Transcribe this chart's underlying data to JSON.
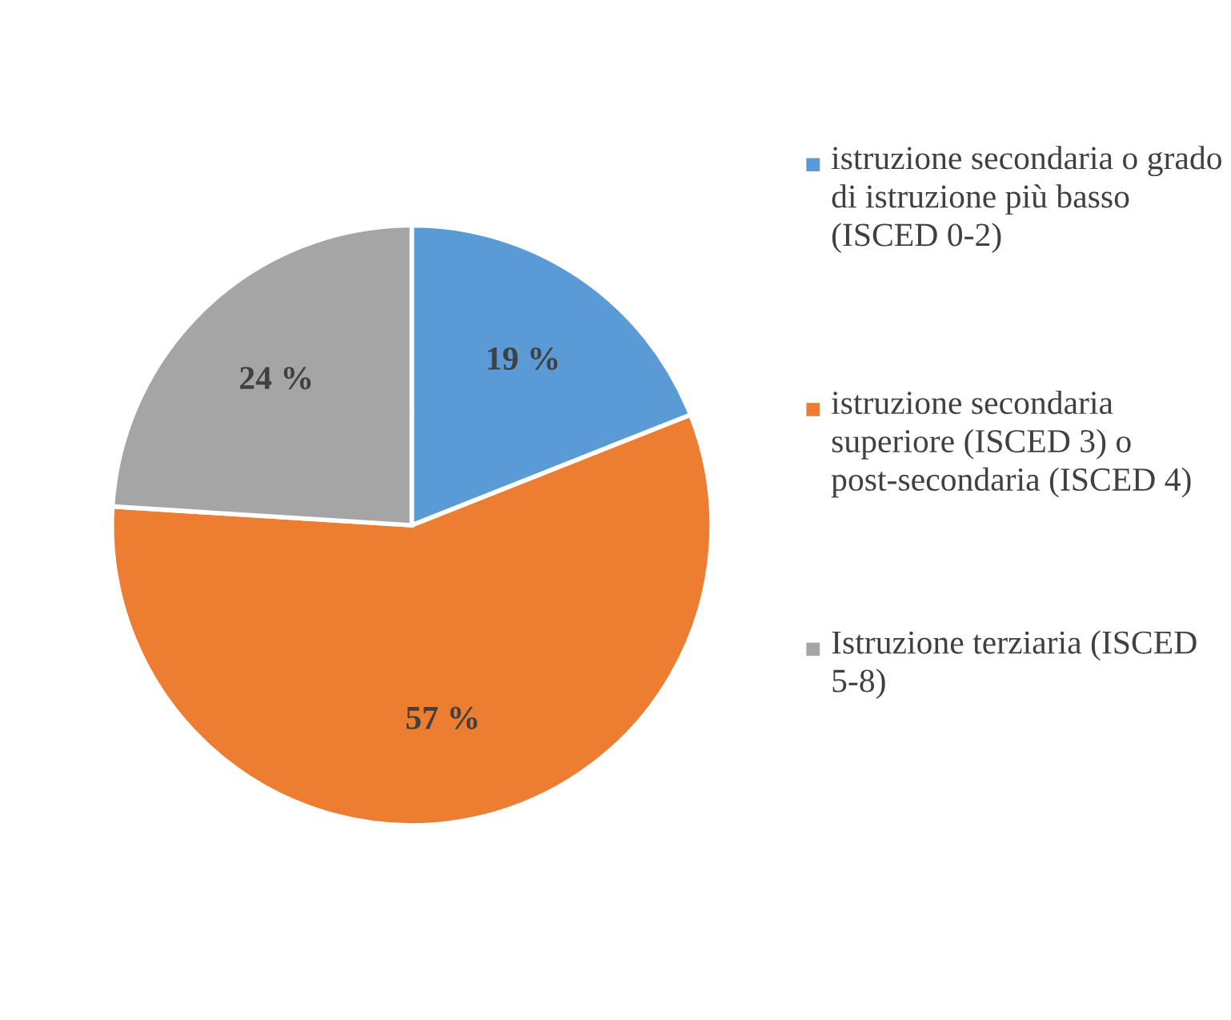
{
  "chart_data": {
    "type": "pie",
    "categories": [
      "istruzione secondaria o grado di istruzione più basso (ISCED 0-2)",
      "istruzione secondaria superiore (ISCED 3) o post-secondaria (ISCED 4)",
      "Istruzione terziaria (ISCED 5-8)"
    ],
    "values": [
      19,
      57,
      24
    ],
    "colors": [
      "#5b9bd5",
      "#ed7d31",
      "#a5a5a5"
    ],
    "value_labels": [
      "19 %",
      "57 %",
      "24 %"
    ],
    "legend": "right"
  }
}
